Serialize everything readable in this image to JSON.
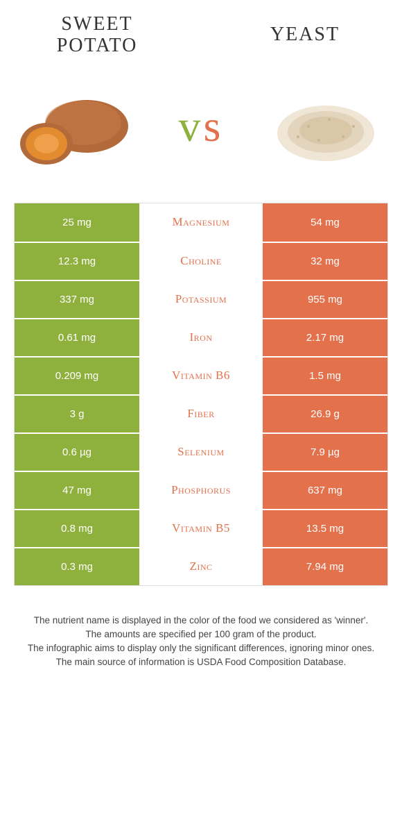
{
  "colors": {
    "left_color": "#8eb03d",
    "right_color": "#e2714c",
    "background": "#ffffff",
    "text_dark": "#333333"
  },
  "header": {
    "left_title_line1": "Sweet",
    "left_title_line2": "potato",
    "right_title": "Yeast",
    "vs_v": "v",
    "vs_s": "s"
  },
  "illustration": {
    "left_name": "sweet-potato-image",
    "right_name": "yeast-image",
    "sweet_potato_skin": "#b36a3a",
    "sweet_potato_flesh": "#e38b2f",
    "yeast_tone": "#d9c7a8"
  },
  "rows": [
    {
      "left": "25 mg",
      "label": "Magnesium",
      "right": "54 mg",
      "winner": "right"
    },
    {
      "left": "12.3 mg",
      "label": "Choline",
      "right": "32 mg",
      "winner": "right"
    },
    {
      "left": "337 mg",
      "label": "Potassium",
      "right": "955 mg",
      "winner": "right"
    },
    {
      "left": "0.61 mg",
      "label": "Iron",
      "right": "2.17 mg",
      "winner": "right"
    },
    {
      "left": "0.209 mg",
      "label": "Vitamin B6",
      "right": "1.5 mg",
      "winner": "right"
    },
    {
      "left": "3 g",
      "label": "Fiber",
      "right": "26.9 g",
      "winner": "right"
    },
    {
      "left": "0.6 µg",
      "label": "Selenium",
      "right": "7.9 µg",
      "winner": "right"
    },
    {
      "left": "47 mg",
      "label": "Phosphorus",
      "right": "637 mg",
      "winner": "right"
    },
    {
      "left": "0.8 mg",
      "label": "Vitamin B5",
      "right": "13.5 mg",
      "winner": "right"
    },
    {
      "left": "0.3 mg",
      "label": "Zinc",
      "right": "7.94 mg",
      "winner": "right"
    }
  ],
  "footer": {
    "line1": "The nutrient name is displayed in the color of the food we considered as 'winner'.",
    "line2": "The amounts are specified per 100 gram of the product.",
    "line3": "The infographic aims to display only the significant differences, ignoring minor ones.",
    "line4": "The main source of information is USDA Food Composition Database."
  }
}
